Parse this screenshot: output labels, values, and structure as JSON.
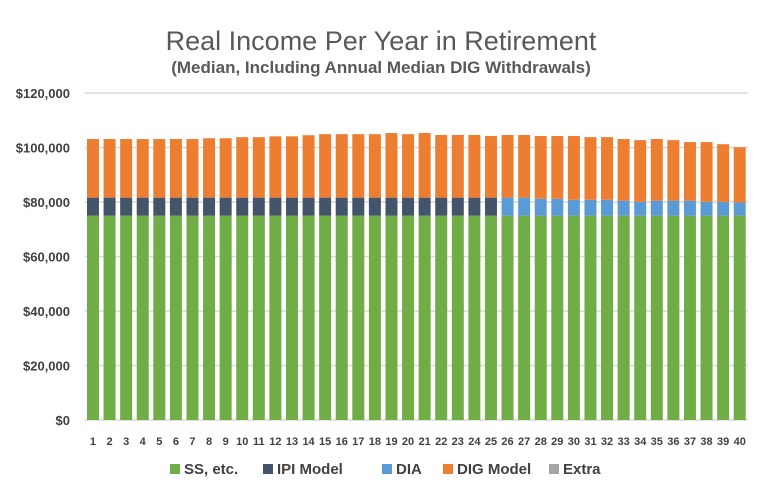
{
  "chart_data": {
    "type": "bar",
    "stacked": true,
    "title": "Real Income Per Year in Retirement",
    "subtitle": "(Median, Including Annual Median DIG Withdrawals)",
    "xlabel": "",
    "ylabel": "",
    "ylim": [
      0,
      120000
    ],
    "yticks": [
      "$0",
      "$20,000",
      "$40,000",
      "$60,000",
      "$80,000",
      "$100,000",
      "$120,000"
    ],
    "ytick_values": [
      0,
      20000,
      40000,
      60000,
      80000,
      100000,
      120000
    ],
    "grid": true,
    "legend": "bottom",
    "categories": [
      "1",
      "2",
      "3",
      "4",
      "5",
      "6",
      "7",
      "8",
      "9",
      "10",
      "11",
      "12",
      "13",
      "14",
      "15",
      "16",
      "17",
      "18",
      "19",
      "20",
      "21",
      "22",
      "23",
      "24",
      "25",
      "26",
      "27",
      "28",
      "29",
      "30",
      "31",
      "32",
      "33",
      "34",
      "35",
      "36",
      "37",
      "38",
      "39",
      "40"
    ],
    "series": [
      {
        "name": "SS, etc.",
        "color": "#70AD47",
        "values": [
          75000,
          75000,
          75000,
          75000,
          75000,
          75000,
          75000,
          75000,
          75000,
          75000,
          75000,
          75000,
          75000,
          75000,
          75000,
          75000,
          75000,
          75000,
          75000,
          75000,
          75000,
          75000,
          75000,
          75000,
          75000,
          75000,
          75000,
          75000,
          75000,
          75000,
          75000,
          75000,
          75000,
          75000,
          75000,
          75000,
          75000,
          75000,
          75000,
          75000
        ]
      },
      {
        "name": "IPI Model",
        "color": "#44546A",
        "values": [
          6600,
          6600,
          6600,
          6600,
          6600,
          6600,
          6600,
          6600,
          6600,
          6600,
          6600,
          6600,
          6600,
          6600,
          6600,
          6600,
          6600,
          6600,
          6600,
          6600,
          6600,
          6600,
          6600,
          6600,
          6600,
          0,
          0,
          0,
          0,
          0,
          0,
          0,
          0,
          0,
          0,
          0,
          0,
          0,
          0,
          0
        ]
      },
      {
        "name": "DIA",
        "color": "#5B9BD5",
        "values": [
          0,
          0,
          0,
          0,
          0,
          0,
          0,
          0,
          0,
          0,
          0,
          0,
          0,
          0,
          0,
          0,
          0,
          0,
          0,
          0,
          0,
          0,
          0,
          0,
          0,
          6600,
          6600,
          6200,
          6200,
          5800,
          5800,
          5800,
          5500,
          5100,
          5500,
          5500,
          5500,
          5100,
          5100,
          4800
        ]
      },
      {
        "name": "DIG Model",
        "color": "#ED7D31",
        "values": [
          21500,
          21500,
          21500,
          21500,
          21500,
          21500,
          21500,
          21800,
          21800,
          22200,
          22200,
          22500,
          22500,
          22900,
          23300,
          23300,
          23300,
          23300,
          23700,
          23300,
          23700,
          23000,
          23000,
          23000,
          22600,
          23000,
          23000,
          23000,
          23000,
          23400,
          23000,
          23000,
          22600,
          22600,
          22600,
          22200,
          21500,
          21900,
          21100,
          20300
        ]
      },
      {
        "name": "Extra",
        "color": "#A5A5A5",
        "values": [
          0,
          0,
          0,
          0,
          0,
          0,
          0,
          0,
          0,
          0,
          0,
          0,
          0,
          0,
          0,
          0,
          0,
          0,
          0,
          0,
          0,
          0,
          0,
          0,
          0,
          0,
          0,
          0,
          0,
          0,
          0,
          0,
          0,
          0,
          0,
          0,
          0,
          0,
          0,
          0
        ]
      }
    ]
  }
}
